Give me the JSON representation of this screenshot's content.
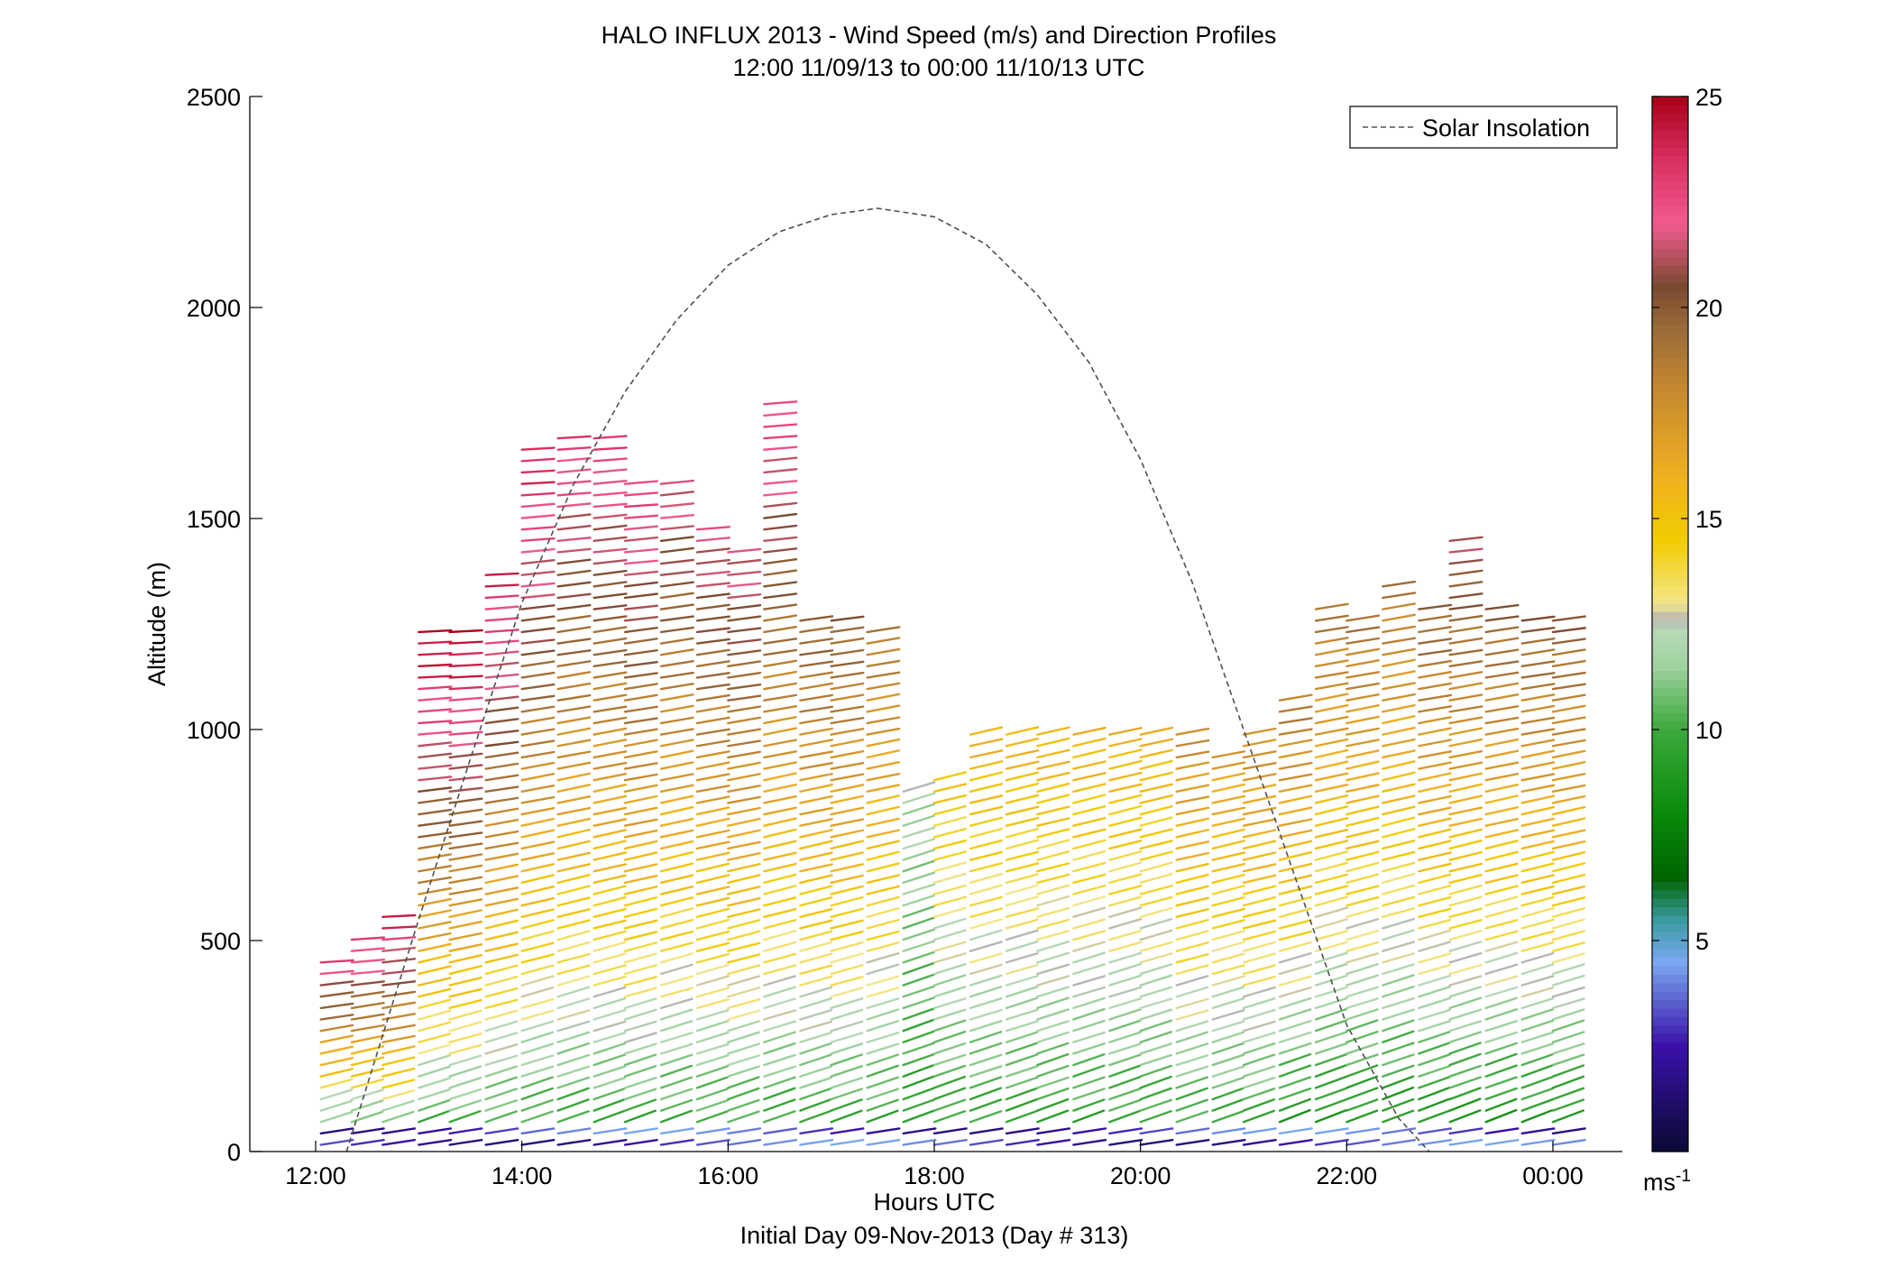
{
  "chart_data": {
    "type": "scatter",
    "title": "HALO INFLUX 2013 - Wind Speed (m/s) and Direction Profiles",
    "subtitle": "12:00 11/09/13 to 00:00 11/10/13  UTC",
    "xlabel": "Hours UTC",
    "ylabel": "Altitude (m)",
    "footer": "Initial Day 09-Nov-2013 (Day # 313)",
    "xlim": [
      12,
      24
    ],
    "ylim": [
      0,
      2500
    ],
    "x_ticks": [
      12,
      14,
      16,
      18,
      20,
      22,
      24
    ],
    "x_tick_labels": [
      "12:00",
      "14:00",
      "16:00",
      "18:00",
      "20:00",
      "22:00",
      "00:00"
    ],
    "y_ticks": [
      0,
      500,
      1000,
      1500,
      2000,
      2500
    ],
    "y_tick_labels": [
      "0",
      "500",
      "1000",
      "1500",
      "2000",
      "2500"
    ],
    "legend": {
      "label": "Solar Insolation",
      "position": "top-right"
    },
    "colorbar": {
      "min": 0,
      "max": 25,
      "ticks": [
        5,
        10,
        15,
        20,
        25
      ],
      "tick_labels": [
        "5",
        "10",
        "15",
        "20",
        "25"
      ],
      "unit_label": "ms",
      "unit_exponent": "-1",
      "stops": [
        {
          "v": 0,
          "c": "#0a0a33"
        },
        {
          "v": 2.5,
          "c": "#3a10a8"
        },
        {
          "v": 4.5,
          "c": "#7aa8f0"
        },
        {
          "v": 5.5,
          "c": "#3a9aa0"
        },
        {
          "v": 6.5,
          "c": "#006400"
        },
        {
          "v": 8,
          "c": "#0a8a0a"
        },
        {
          "v": 10,
          "c": "#3ba83b"
        },
        {
          "v": 11.5,
          "c": "#9fd29f"
        },
        {
          "v": 12.4,
          "c": "#b9d9b9"
        },
        {
          "v": 12.6,
          "c": "#b4b4b4"
        },
        {
          "v": 13,
          "c": "#f4e68a"
        },
        {
          "v": 14.5,
          "c": "#f2cc00"
        },
        {
          "v": 16,
          "c": "#f0b020"
        },
        {
          "v": 18,
          "c": "#c88a30"
        },
        {
          "v": 19.5,
          "c": "#9a6a38"
        },
        {
          "v": 20.5,
          "c": "#7a4a30"
        },
        {
          "v": 22,
          "c": "#f25a90"
        },
        {
          "v": 23.5,
          "c": "#d83060"
        },
        {
          "v": 25,
          "c": "#a80018"
        }
      ]
    },
    "solar_insolation": {
      "style": "dashed",
      "color": "#505050",
      "x": [
        12.3,
        13.0,
        13.5,
        14.0,
        14.5,
        15.0,
        15.5,
        16.0,
        16.5,
        17.0,
        17.45,
        18.0,
        18.5,
        19.0,
        19.5,
        20.0,
        20.5,
        21.0,
        21.5,
        22.0,
        22.5,
        22.8
      ],
      "y": [
        0,
        550,
        930,
        1300,
        1580,
        1800,
        1970,
        2100,
        2180,
        2220,
        2235,
        2215,
        2150,
        2030,
        1870,
        1640,
        1350,
        1000,
        650,
        300,
        80,
        0
      ]
    },
    "wind_barbs": {
      "encoding": "each barb at (time_hours, altitude_m) colored by wind speed (m/s); direction shown by barb slope (mostly westerly, tilted upward with weaker winds)",
      "profiles": [
        {
          "t": 12.05,
          "z_min": 0,
          "z_max": 460,
          "s_low": 8,
          "s_high": 23
        },
        {
          "t": 12.35,
          "z_min": 0,
          "z_max": 520,
          "s_low": 8,
          "s_high": 24
        },
        {
          "t": 12.65,
          "z_min": 0,
          "z_max": 560,
          "s_low": 9,
          "s_high": 24
        },
        {
          "t": 13.0,
          "z_min": 0,
          "z_max": 1250,
          "s_low": 9,
          "s_high": 25
        },
        {
          "t": 13.3,
          "z_min": 0,
          "z_max": 1250,
          "s_low": 9,
          "s_high": 25
        },
        {
          "t": 13.65,
          "z_min": 0,
          "z_max": 1390,
          "s_low": 9,
          "s_high": 24
        },
        {
          "t": 14.0,
          "z_min": 0,
          "z_max": 1680,
          "s_low": 9,
          "s_high": 24
        },
        {
          "t": 14.35,
          "z_min": 0,
          "z_max": 1700,
          "s_low": 9,
          "s_high": 23
        },
        {
          "t": 14.7,
          "z_min": 0,
          "z_max": 1700,
          "s_low": 9,
          "s_high": 23
        },
        {
          "t": 15.0,
          "z_min": 0,
          "z_max": 1590,
          "s_low": 9,
          "s_high": 23
        },
        {
          "t": 15.35,
          "z_min": 0,
          "z_max": 1590,
          "s_low": 9,
          "s_high": 22
        },
        {
          "t": 15.7,
          "z_min": 0,
          "z_max": 1480,
          "s_low": 9,
          "s_high": 22
        },
        {
          "t": 16.0,
          "z_min": 0,
          "z_max": 1430,
          "s_low": 9,
          "s_high": 22
        },
        {
          "t": 16.35,
          "z_min": 0,
          "z_max": 1790,
          "s_low": 9,
          "s_high": 23
        },
        {
          "t": 16.7,
          "z_min": 0,
          "z_max": 1260,
          "s_low": 9,
          "s_high": 20
        },
        {
          "t": 17.0,
          "z_min": 0,
          "z_max": 1260,
          "s_low": 9,
          "s_high": 20
        },
        {
          "t": 17.35,
          "z_min": 0,
          "z_max": 1250,
          "s_low": 9,
          "s_high": 19
        },
        {
          "t": 17.7,
          "z_min": 0,
          "z_max": 860,
          "s_low": 9,
          "s_high": 12
        },
        {
          "t": 18.0,
          "z_min": 0,
          "z_max": 900,
          "s_low": 9,
          "s_high": 15
        },
        {
          "t": 18.35,
          "z_min": 0,
          "z_max": 990,
          "s_low": 9,
          "s_high": 16
        },
        {
          "t": 18.7,
          "z_min": 0,
          "z_max": 1000,
          "s_low": 9,
          "s_high": 16
        },
        {
          "t": 19.0,
          "z_min": 0,
          "z_max": 1000,
          "s_low": 9,
          "s_high": 16
        },
        {
          "t": 19.35,
          "z_min": 0,
          "z_max": 1000,
          "s_low": 9,
          "s_high": 16
        },
        {
          "t": 19.7,
          "z_min": 0,
          "z_max": 1000,
          "s_low": 9,
          "s_high": 16
        },
        {
          "t": 20.0,
          "z_min": 0,
          "z_max": 1000,
          "s_low": 9,
          "s_high": 16
        },
        {
          "t": 20.35,
          "z_min": 0,
          "z_max": 1000,
          "s_low": 9,
          "s_high": 18
        },
        {
          "t": 20.7,
          "z_min": 0,
          "z_max": 940,
          "s_low": 9,
          "s_high": 17
        },
        {
          "t": 21.0,
          "z_min": 0,
          "z_max": 1000,
          "s_low": 9,
          "s_high": 18
        },
        {
          "t": 21.35,
          "z_min": 0,
          "z_max": 1090,
          "s_low": 8,
          "s_high": 19
        },
        {
          "t": 21.7,
          "z_min": 0,
          "z_max": 1300,
          "s_low": 8,
          "s_high": 19
        },
        {
          "t": 22.0,
          "z_min": 0,
          "z_max": 1260,
          "s_low": 8,
          "s_high": 19
        },
        {
          "t": 22.35,
          "z_min": 0,
          "z_max": 1360,
          "s_low": 8,
          "s_high": 19
        },
        {
          "t": 22.7,
          "z_min": 0,
          "z_max": 1300,
          "s_low": 8,
          "s_high": 20
        },
        {
          "t": 23.0,
          "z_min": 0,
          "z_max": 1450,
          "s_low": 8,
          "s_high": 21
        },
        {
          "t": 23.35,
          "z_min": 0,
          "z_max": 1300,
          "s_low": 8,
          "s_high": 20
        },
        {
          "t": 23.7,
          "z_min": 0,
          "z_max": 1260,
          "s_low": 8,
          "s_high": 20
        },
        {
          "t": 24.0,
          "z_min": 0,
          "z_max": 1260,
          "s_low": 8,
          "s_high": 20
        }
      ]
    }
  }
}
